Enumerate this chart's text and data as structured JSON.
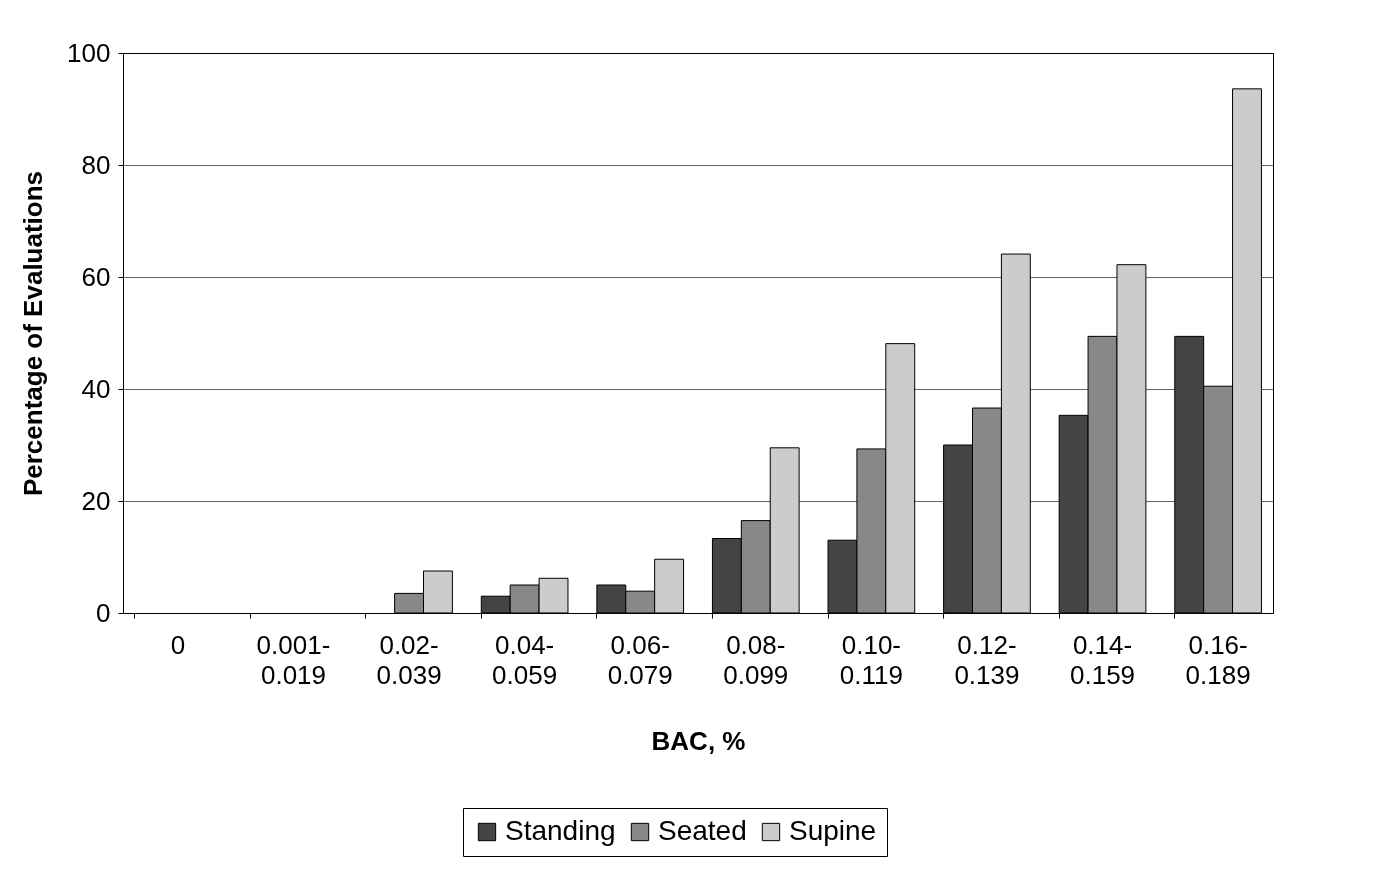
{
  "chart_data": {
    "type": "bar",
    "xlabel": "BAC, %",
    "ylabel": "Percentage of Evaluations",
    "categories": [
      "0",
      "0.001-0.019",
      "0.02-0.039",
      "0.04-0.059",
      "0.06-0.079",
      "0.08-0.099",
      "0.10-0.119",
      "0.12-0.139",
      "0.14-0.159",
      "0.16-0.189"
    ],
    "series": [
      {
        "name": "Standing",
        "color": "#444444",
        "values": [
          0,
          0,
          0,
          3,
          5,
          13.3,
          13,
          30,
          35.3,
          49.4
        ]
      },
      {
        "name": "Seated",
        "color": "#888888",
        "values": [
          0,
          0,
          3.5,
          5,
          3.9,
          16.5,
          29.3,
          36.6,
          49.4,
          40.5
        ]
      },
      {
        "name": "Supine",
        "color": "#cccccc",
        "values": [
          0,
          0,
          7.5,
          6.2,
          9.6,
          29.5,
          48.1,
          64.1,
          62.2,
          93.6
        ]
      }
    ],
    "ylim": [
      0,
      100
    ],
    "yticks": [
      0,
      20,
      40,
      60,
      80,
      100
    ],
    "grid": "y",
    "legend": "bottom"
  }
}
